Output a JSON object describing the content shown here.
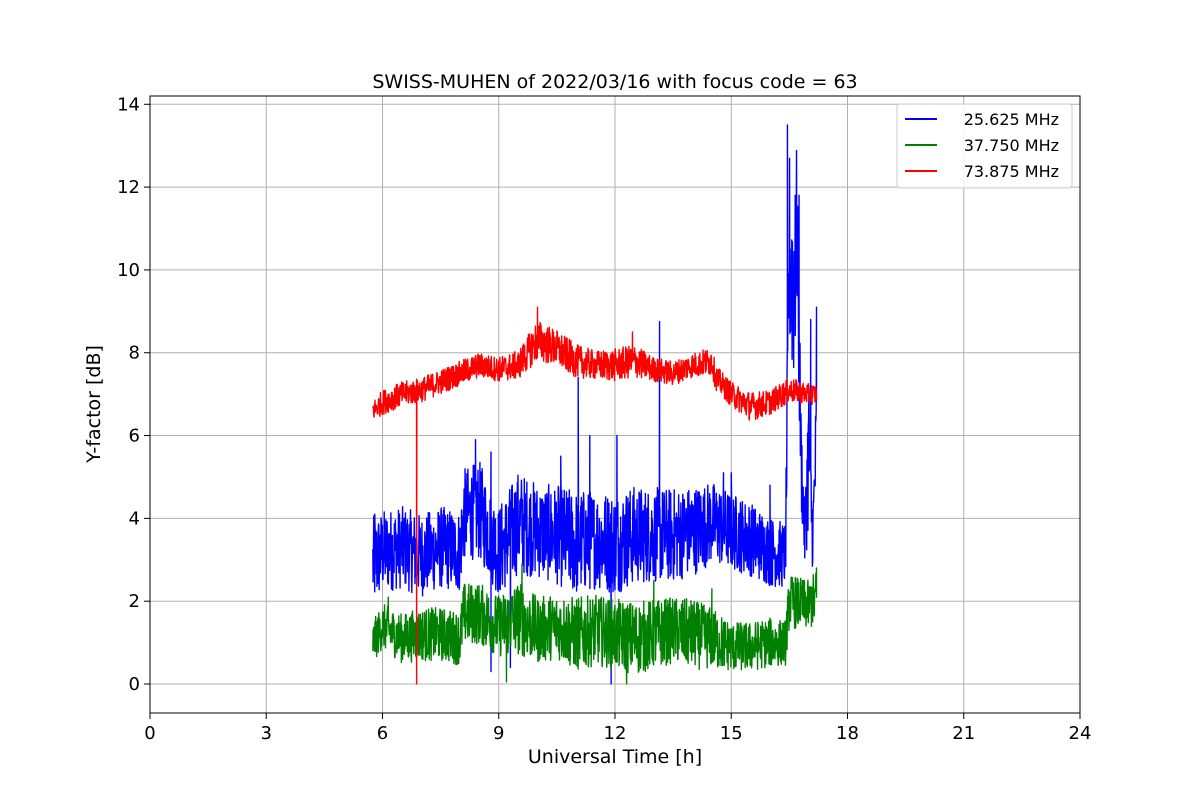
{
  "chart_data": {
    "type": "line",
    "title": "SWISS-MUHEN of 2022/03/16 with focus code = 63",
    "xlabel": "Universal Time [h]",
    "ylabel": "Y-factor [dB]",
    "xlim": [
      0,
      24
    ],
    "ylim": [
      -0.7,
      14.2
    ],
    "xticks": [
      0,
      3,
      6,
      9,
      12,
      15,
      18,
      21,
      24
    ],
    "yticks": [
      0,
      2,
      4,
      6,
      8,
      10,
      12,
      14
    ],
    "grid": true,
    "legend_position": "top-right",
    "series": [
      {
        "name": "25.625 MHz",
        "color": "#0000ff",
        "x": [
          5.75,
          6.0,
          6.5,
          7.0,
          7.5,
          8.0,
          8.1,
          8.5,
          9.0,
          9.5,
          10.0,
          10.5,
          11.0,
          11.5,
          12.0,
          12.5,
          13.0,
          13.5,
          14.0,
          14.5,
          15.0,
          15.5,
          16.0,
          16.4,
          16.5,
          16.6,
          16.7,
          16.8,
          16.9,
          17.0,
          17.1,
          17.2
        ],
        "y": [
          2.9,
          3.2,
          3.3,
          3.1,
          3.3,
          3.2,
          4.1,
          4.2,
          3.2,
          3.9,
          3.7,
          3.6,
          3.4,
          3.5,
          3.4,
          3.6,
          3.6,
          3.6,
          3.7,
          3.9,
          3.7,
          3.5,
          3.2,
          3.1,
          10.5,
          9.5,
          11.0,
          5.5,
          3.5,
          5.8,
          3.5,
          6.0
        ],
        "spread": [
          2.3,
          2.0,
          2.0,
          2.0,
          2.0,
          2.0,
          2.2,
          2.4,
          2.2,
          2.5,
          2.3,
          2.4,
          2.6,
          2.4,
          2.5,
          2.4,
          2.3,
          2.3,
          2.2,
          2.0,
          1.9,
          1.8,
          1.7,
          1.6,
          5.0,
          5.0,
          4.5,
          2.5,
          1.5,
          4.0,
          1.5,
          3.0
        ],
        "spikes": [
          [
            5.8,
            4.1
          ],
          [
            8.4,
            5.9
          ],
          [
            8.8,
            5.6
          ],
          [
            8.8,
            0.3
          ],
          [
            9.3,
            0.4
          ],
          [
            10.6,
            5.5
          ],
          [
            11.05,
            7.4
          ],
          [
            11.35,
            6.0
          ],
          [
            11.9,
            0.0
          ],
          [
            12.05,
            6.0
          ],
          [
            13.15,
            8.75
          ],
          [
            14.8,
            5.1
          ],
          [
            15.0,
            5.1
          ],
          [
            16.0,
            4.8
          ],
          [
            16.45,
            13.5
          ],
          [
            16.65,
            11.8
          ],
          [
            16.75,
            11.8
          ],
          [
            17.05,
            8.8
          ],
          [
            17.2,
            9.1
          ]
        ]
      },
      {
        "name": "37.750 MHz",
        "color": "#008000",
        "x": [
          5.75,
          6.0,
          6.5,
          7.0,
          7.5,
          8.0,
          8.1,
          8.5,
          9.0,
          9.5,
          10.0,
          10.5,
          11.0,
          11.5,
          12.0,
          12.5,
          13.0,
          13.5,
          14.0,
          14.5,
          15.0,
          15.5,
          16.0,
          16.4,
          16.5,
          17.0,
          17.2
        ],
        "y": [
          1.0,
          1.4,
          1.1,
          1.2,
          1.2,
          1.1,
          1.7,
          1.7,
          1.4,
          1.6,
          1.3,
          1.4,
          1.2,
          1.3,
          1.2,
          1.1,
          1.2,
          1.3,
          1.2,
          1.1,
          0.9,
          0.9,
          1.0,
          1.0,
          2.0,
          1.9,
          2.1
        ],
        "spread": [
          1.0,
          1.1,
          1.2,
          1.3,
          1.3,
          1.3,
          1.5,
          1.5,
          1.5,
          1.8,
          1.6,
          1.6,
          1.8,
          1.7,
          1.7,
          1.8,
          1.7,
          1.6,
          1.7,
          1.5,
          1.2,
          1.2,
          1.2,
          1.1,
          1.3,
          1.2,
          1.4
        ],
        "spikes": [
          [
            6.15,
            2.1
          ],
          [
            9.2,
            0.05
          ],
          [
            9.6,
            2.9
          ],
          [
            12.3,
            0.0
          ],
          [
            13.0,
            2.5
          ],
          [
            14.5,
            2.3
          ],
          [
            17.2,
            2.8
          ]
        ]
      },
      {
        "name": "73.875 MHz",
        "color": "#ff0000",
        "x": [
          5.75,
          6.0,
          6.5,
          7.0,
          7.5,
          8.0,
          8.5,
          9.0,
          9.5,
          10.0,
          10.5,
          11.0,
          11.5,
          12.0,
          12.5,
          13.0,
          13.5,
          14.0,
          14.5,
          14.6,
          15.0,
          15.5,
          16.0,
          16.5,
          17.0,
          17.2
        ],
        "y": [
          6.6,
          6.8,
          7.0,
          7.1,
          7.3,
          7.5,
          7.7,
          7.6,
          7.7,
          8.3,
          8.1,
          7.8,
          7.7,
          7.7,
          7.8,
          7.6,
          7.5,
          7.7,
          7.8,
          7.4,
          7.0,
          6.7,
          6.8,
          7.1,
          7.0,
          7.0
        ],
        "spread": [
          0.5,
          0.6,
          0.6,
          0.6,
          0.6,
          0.6,
          0.6,
          0.6,
          0.7,
          1.0,
          0.9,
          0.8,
          0.7,
          0.8,
          0.8,
          0.6,
          0.6,
          0.6,
          0.7,
          0.6,
          0.6,
          0.7,
          0.6,
          0.6,
          0.5,
          0.5
        ],
        "spikes": [
          [
            6.88,
            0.0
          ],
          [
            10.0,
            9.1
          ],
          [
            12.45,
            8.5
          ]
        ]
      }
    ]
  }
}
